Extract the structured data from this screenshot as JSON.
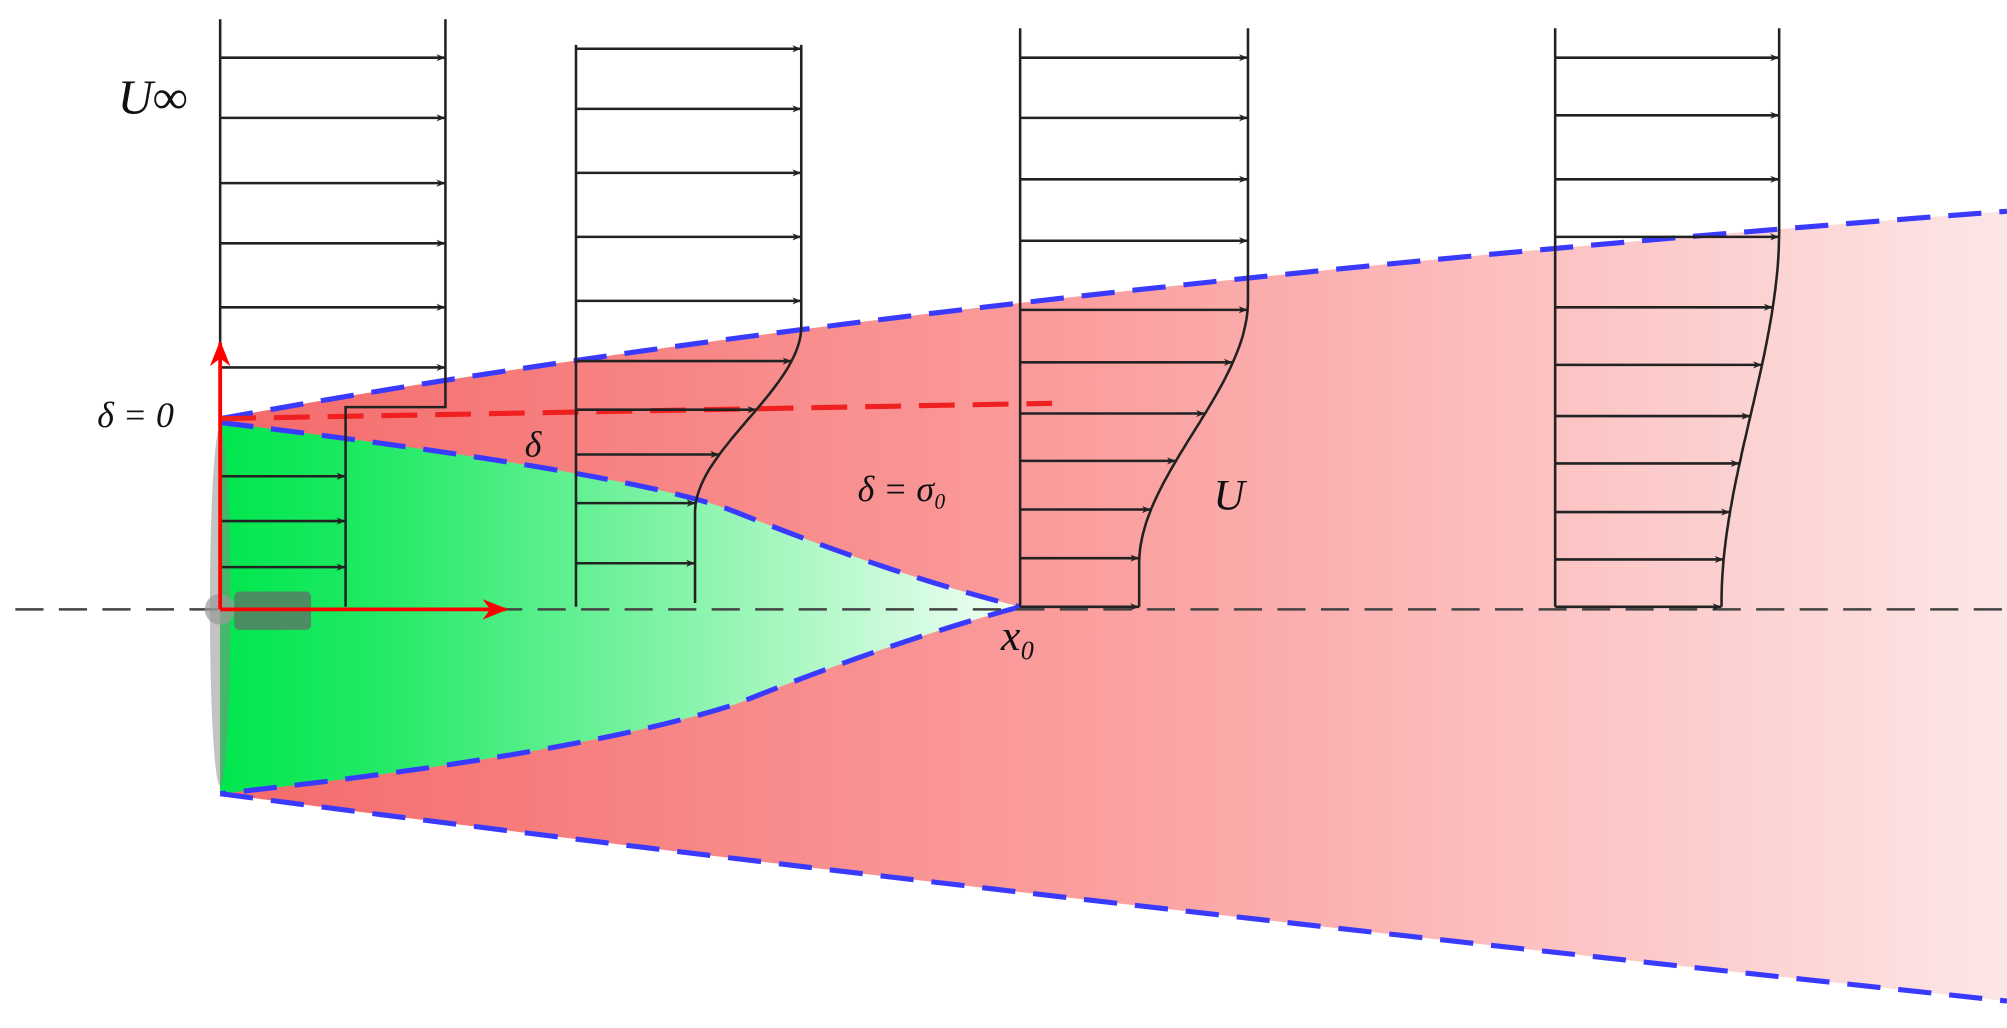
{
  "labels": {
    "u_inf": "U∞",
    "delta_zero": "δ = 0",
    "delta": "δ",
    "delta_sigma": "δ = σ₀",
    "u": "U",
    "x0": "x₀"
  }
}
